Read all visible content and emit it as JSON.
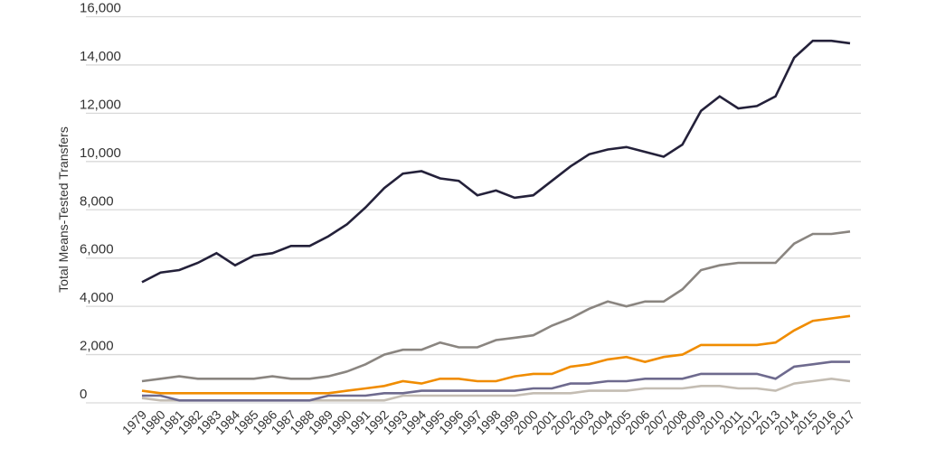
{
  "chart_data": {
    "type": "line",
    "title": "",
    "xlabel": "",
    "ylabel": "Total Means-Tested Transfers",
    "ylim": [
      0,
      16000
    ],
    "yticks": [
      0,
      2000,
      4000,
      6000,
      8000,
      10000,
      12000,
      14000,
      16000
    ],
    "ytick_labels": [
      "0",
      "2,000",
      "4,000",
      "6,000",
      "8,000",
      "10,000",
      "12,000",
      "14,000",
      "16,000"
    ],
    "grid": "horizontal",
    "x": [
      "1979",
      "1980",
      "1981",
      "1982",
      "1983",
      "1984",
      "1985",
      "1986",
      "1987",
      "1988",
      "1989",
      "1990",
      "1991",
      "1992",
      "1993",
      "1994",
      "1995",
      "1996",
      "1997",
      "1998",
      "1999",
      "2000",
      "2001",
      "2002",
      "2003",
      "2004",
      "2005",
      "2006",
      "2007",
      "2008",
      "2009",
      "2010",
      "2011",
      "2012",
      "2013",
      "2014",
      "2015",
      "2016",
      "2017"
    ],
    "series": [
      {
        "color": "#24213a",
        "values": [
          5000,
          5400,
          5500,
          5800,
          6200,
          5700,
          6100,
          6200,
          6500,
          6500,
          6900,
          7400,
          8100,
          8900,
          9500,
          9600,
          9300,
          9200,
          8600,
          8800,
          8500,
          8600,
          9200,
          9800,
          10300,
          10500,
          10600,
          10400,
          10200,
          10700,
          12100,
          12700,
          12200,
          12300,
          12700,
          14300,
          15000,
          15000,
          14900
        ]
      },
      {
        "color": "#8a8580",
        "values": [
          900,
          1000,
          1100,
          1000,
          1000,
          1000,
          1000,
          1100,
          1000,
          1000,
          1100,
          1300,
          1600,
          2000,
          2200,
          2200,
          2500,
          2300,
          2300,
          2600,
          2700,
          2800,
          3200,
          3500,
          3900,
          4200,
          4000,
          4200,
          4200,
          4700,
          5500,
          5700,
          5800,
          5800,
          5800,
          6600,
          7000,
          7000,
          7100
        ]
      },
      {
        "color": "#f08c00",
        "values": [
          500,
          400,
          400,
          400,
          400,
          400,
          400,
          400,
          400,
          400,
          400,
          500,
          600,
          700,
          900,
          800,
          1000,
          1000,
          900,
          900,
          1100,
          1200,
          1200,
          1500,
          1600,
          1800,
          1900,
          1700,
          1900,
          2000,
          2400,
          2400,
          2400,
          2400,
          2500,
          3000,
          3400,
          3500,
          3600
        ]
      },
      {
        "color": "#6e6a8e",
        "values": [
          300,
          300,
          100,
          100,
          100,
          100,
          100,
          100,
          100,
          100,
          300,
          300,
          300,
          400,
          400,
          500,
          500,
          500,
          500,
          500,
          500,
          600,
          600,
          800,
          800,
          900,
          900,
          1000,
          1000,
          1000,
          1200,
          1200,
          1200,
          1200,
          1000,
          1500,
          1600,
          1700,
          1700
        ]
      },
      {
        "color": "#c4bdb3",
        "values": [
          200,
          100,
          100,
          100,
          100,
          100,
          100,
          100,
          100,
          100,
          100,
          100,
          100,
          100,
          300,
          300,
          300,
          300,
          300,
          300,
          300,
          400,
          400,
          400,
          500,
          500,
          500,
          600,
          600,
          600,
          700,
          700,
          600,
          600,
          500,
          800,
          900,
          1000,
          900
        ]
      }
    ]
  }
}
